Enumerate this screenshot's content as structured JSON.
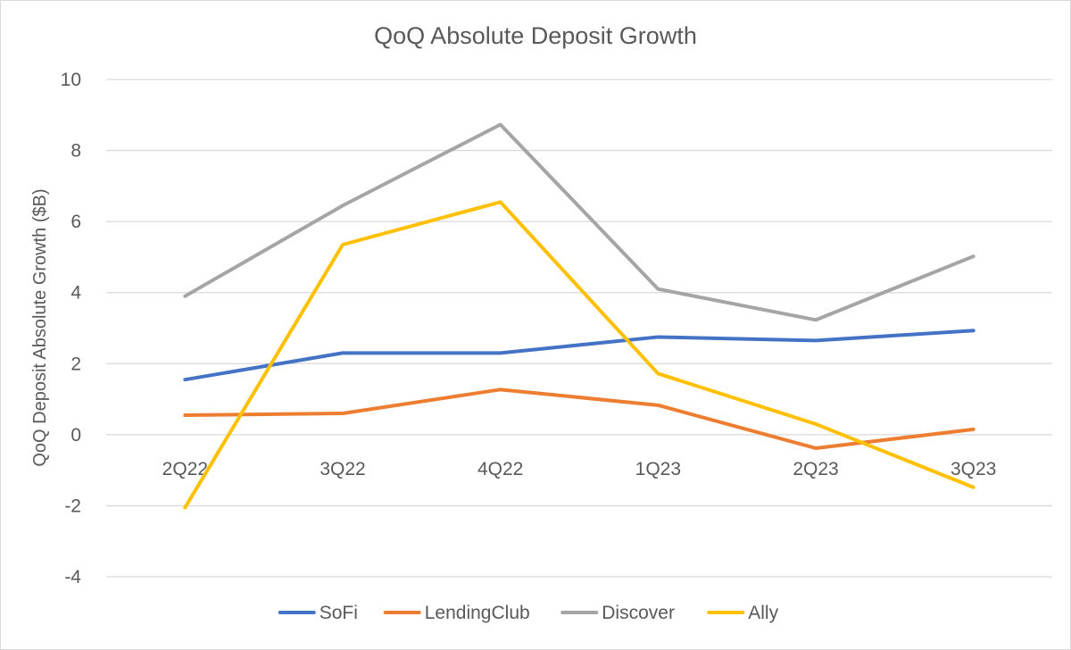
{
  "chart_data": {
    "type": "line",
    "title": "QoQ Absolute Deposit Growth",
    "xlabel": "",
    "ylabel": "QoQ Deposit Absolute Growth ($B)",
    "categories": [
      "2Q22",
      "3Q22",
      "4Q22",
      "1Q23",
      "2Q23",
      "3Q23"
    ],
    "ylim": [
      -4,
      10
    ],
    "yticks": [
      "10",
      "8",
      "6",
      "4",
      "2",
      "0",
      "-2",
      "-4"
    ],
    "grid": true,
    "legend_position": "bottom",
    "series": [
      {
        "name": "SoFi",
        "color": "#4472C4",
        "values": [
          1.55,
          2.3,
          2.3,
          2.75,
          2.65,
          2.93
        ]
      },
      {
        "name": "LendingClub",
        "color": "#ED7D31",
        "values": [
          0.55,
          0.6,
          1.27,
          0.83,
          -0.38,
          0.15
        ]
      },
      {
        "name": "Discover",
        "color": "#A5A5A5",
        "values": [
          3.9,
          6.45,
          8.73,
          4.1,
          3.23,
          5.02
        ]
      },
      {
        "name": "Ally",
        "color": "#FFC000",
        "values": [
          -2.05,
          5.35,
          6.55,
          1.72,
          0.3,
          -1.48
        ]
      }
    ]
  }
}
